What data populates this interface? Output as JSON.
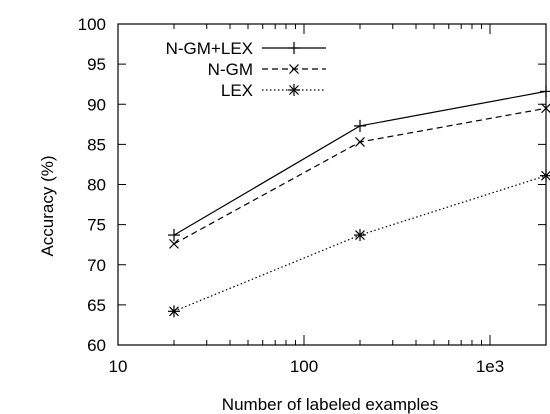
{
  "chart_data": {
    "type": "line",
    "xlabel": "Number of labeled examples",
    "ylabel": "Accuracy (%)",
    "xscale": "log",
    "xlim": [
      10,
      2000
    ],
    "ylim": [
      60,
      100
    ],
    "xticks": [
      {
        "value": 10,
        "label": "10"
      },
      {
        "value": 100,
        "label": "100"
      },
      {
        "value": 1000,
        "label": "1e3"
      }
    ],
    "yticks": [
      60,
      65,
      70,
      75,
      80,
      85,
      90,
      95,
      100
    ],
    "grid": false,
    "legend_position": "top-left",
    "series": [
      {
        "name": "N-GM+LEX",
        "line": "solid",
        "marker": "plus",
        "x": [
          20,
          200,
          2000
        ],
        "y": [
          73.7,
          87.3,
          91.6
        ]
      },
      {
        "name": "N-GM",
        "line": "dashed",
        "marker": "x",
        "x": [
          20,
          200,
          2000
        ],
        "y": [
          72.6,
          85.3,
          89.5
        ]
      },
      {
        "name": "LEX",
        "line": "dotted",
        "marker": "star",
        "x": [
          20,
          200,
          2000
        ],
        "y": [
          64.2,
          73.7,
          81.1
        ]
      }
    ]
  }
}
